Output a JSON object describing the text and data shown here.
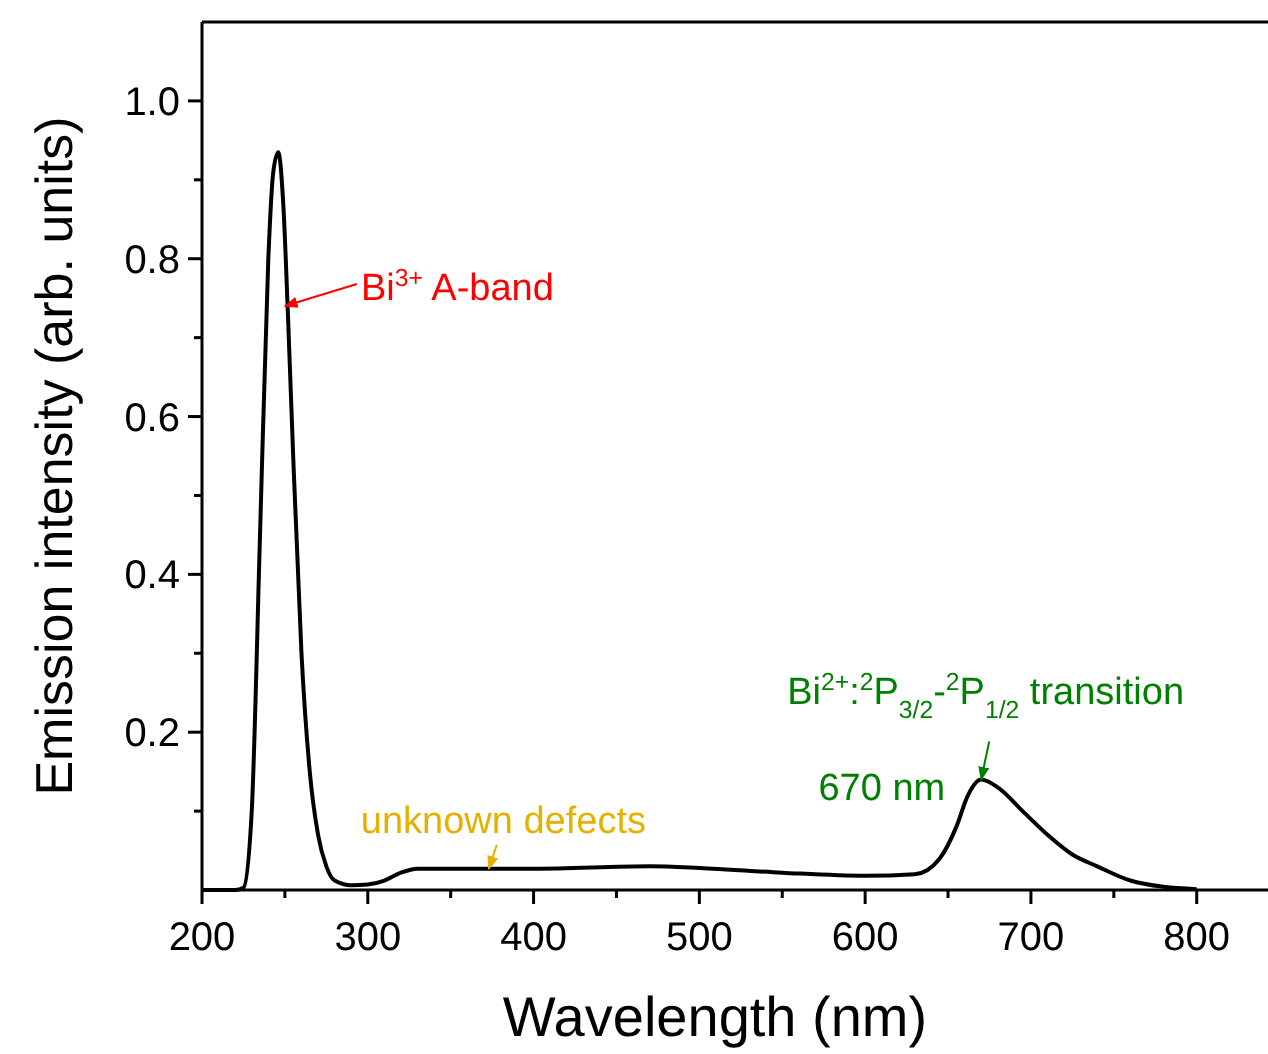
{
  "chart_data": {
    "type": "line",
    "xlabel": "Wavelength (nm)",
    "ylabel": "Emission intensity (arb. units)",
    "x": [
      200,
      220,
      225,
      230,
      235,
      240,
      243,
      246,
      249,
      252,
      255,
      260,
      265,
      270,
      275,
      280,
      290,
      300,
      310,
      320,
      330,
      400,
      470,
      500,
      550,
      600,
      630,
      645,
      655,
      662,
      670,
      680,
      695,
      710,
      725,
      740,
      760,
      780,
      800
    ],
    "series": [
      {
        "color": "#000000",
        "values": [
          0,
          0,
          0.003,
          0.1,
          0.45,
          0.8,
          0.91,
          0.935,
          0.87,
          0.72,
          0.55,
          0.3,
          0.15,
          0.07,
          0.03,
          0.012,
          0.006,
          0.007,
          0.012,
          0.022,
          0.027,
          0.027,
          0.03,
          0.028,
          0.022,
          0.018,
          0.02,
          0.04,
          0.08,
          0.12,
          0.14,
          0.13,
          0.1,
          0.07,
          0.045,
          0.03,
          0.012,
          0.004,
          0.001
        ]
      }
    ],
    "xlim": [
      200,
      843
    ],
    "xticks": [
      200,
      {
        "value": 250,
        "label": null
      },
      300,
      {
        "value": 350,
        "label": null
      },
      400,
      {
        "value": 450,
        "label": null
      },
      500,
      {
        "value": 550,
        "label": null
      },
      600,
      {
        "value": 650,
        "label": null
      },
      700,
      {
        "value": 750,
        "label": null
      },
      800
    ],
    "ylim": [
      0,
      1.1
    ],
    "yticks": [
      {
        "value": 0.1,
        "label": null
      },
      0.2,
      {
        "value": 0.3,
        "label": null
      },
      0.4,
      {
        "value": 0.5,
        "label": null
      },
      0.6,
      {
        "value": 0.7,
        "label": null
      },
      0.8,
      {
        "value": 0.9,
        "label": null
      },
      {
        "value": 1,
        "label": "1.0"
      }
    ],
    "annotations": [
      {
        "text": "Bi$^{3+}$ A-band",
        "x": 250,
        "y": 0.74
      },
      {
        "text": "unknown defects",
        "x": 373,
        "y": 0.027
      },
      "Bi$^{2+}$:$^{2}$P$_{3/2}$-$^{2}$P$_{1/2}$ transition",
      {
        "text": "670 nm",
        "x": 670,
        "y": 0.14
      }
    ],
    "grid": false,
    "marker": "none",
    "line_style": "solid"
  }
}
